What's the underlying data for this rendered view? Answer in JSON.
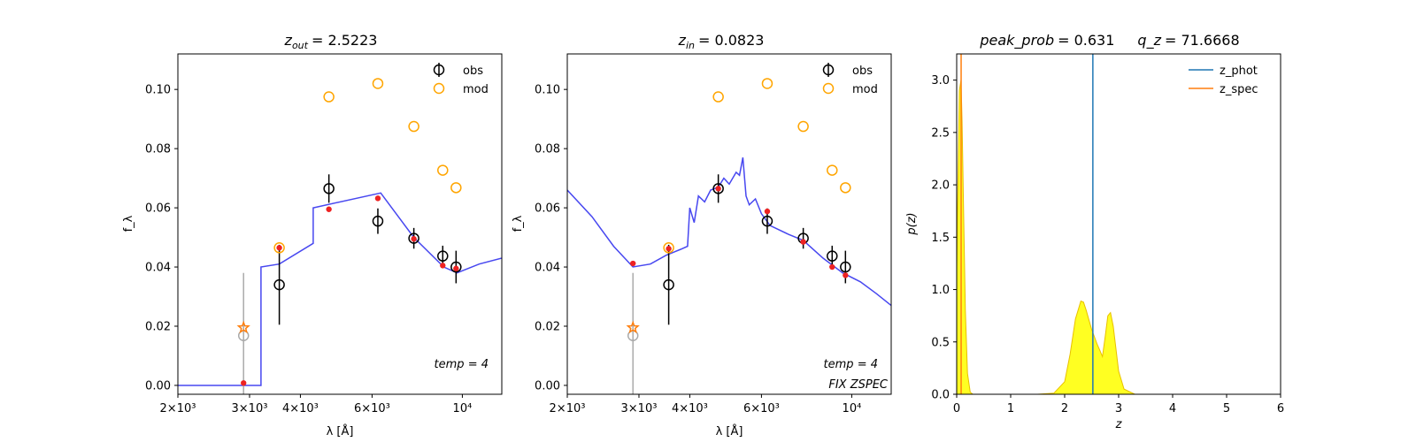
{
  "chart_data": [
    {
      "type": "scatter",
      "title": "z_out = 2.5223",
      "title_parts": {
        "var": "z",
        "sub": "out",
        "value": "= 2.5223"
      },
      "xlabel": "λ [Å]",
      "ylabel": "f_λ",
      "x_scale": "log",
      "xlim": [
        2000,
        12500
      ],
      "ylim": [
        -0.003,
        0.112
      ],
      "x_ticks": [
        {
          "value": 2000,
          "label": "2×10³"
        },
        {
          "value": 3000,
          "label": "3×10³"
        },
        {
          "value": 4000,
          "label": "4×10³"
        },
        {
          "value": 6000,
          "label": "6×10³"
        },
        {
          "value": 10000,
          "label": "10⁴"
        }
      ],
      "y_ticks": [
        0.0,
        0.02,
        0.04,
        0.06,
        0.08,
        0.1
      ],
      "y_tick_labels": [
        "0.00",
        "0.02",
        "0.04",
        "0.06",
        "0.08",
        "0.10"
      ],
      "legend": {
        "placement": "top-right",
        "entries": [
          "obs",
          "mod"
        ]
      },
      "annotation": "temp = 4",
      "annotation2": "",
      "series": [
        {
          "name": "obs",
          "color": "#000000",
          "x": [
            3550,
            4700,
            6200,
            7600,
            8950,
            9650
          ],
          "y": [
            0.034,
            0.0665,
            0.0555,
            0.0497,
            0.0437,
            0.04
          ],
          "err": [
            0.0135,
            0.0048,
            0.0043,
            0.0035,
            0.0035,
            0.0055
          ]
        },
        {
          "name": "obs (upper limit)",
          "color": "#aaaaaa",
          "x": [
            2900
          ],
          "y": [
            0.0168
          ],
          "err": [
            0.0212
          ]
        },
        {
          "name": "mod",
          "color": "#FFA500",
          "x": [
            3550,
            4700,
            6200,
            7600,
            8950,
            9650,
            2900
          ],
          "y": [
            0.0465,
            0.0975,
            0.102,
            0.0875,
            0.0727,
            0.0668,
            0.0195
          ]
        },
        {
          "name": "red points",
          "color": "#ee2222",
          "x": [
            2900,
            3550,
            4700,
            6200,
            7600,
            8950,
            9650
          ],
          "y": [
            0.0008,
            0.0465,
            0.0595,
            0.0632,
            0.0495,
            0.0405,
            0.0395
          ]
        },
        {
          "name": "template",
          "color": "#3333ee",
          "x": [
            2000,
            3200,
            3200,
            3550,
            4300,
            4300,
            6300,
            7600,
            9000,
            9700,
            11000,
            12500
          ],
          "y": [
            0.0,
            0.0,
            0.04,
            0.041,
            0.048,
            0.06,
            0.065,
            0.05,
            0.04,
            0.038,
            0.041,
            0.043
          ]
        }
      ]
    },
    {
      "type": "scatter",
      "title": "z_in = 0.0823",
      "title_parts": {
        "var": "z",
        "sub": "in",
        "value": "= 0.0823"
      },
      "xlabel": "λ [Å]",
      "ylabel": "f_λ",
      "x_scale": "log",
      "xlim": [
        2000,
        12500
      ],
      "ylim": [
        -0.003,
        0.112
      ],
      "x_ticks": [
        {
          "value": 2000,
          "label": "2×10³"
        },
        {
          "value": 3000,
          "label": "3×10³"
        },
        {
          "value": 4000,
          "label": "4×10³"
        },
        {
          "value": 6000,
          "label": "6×10³"
        },
        {
          "value": 10000,
          "label": "10⁴"
        }
      ],
      "y_ticks": [
        0.0,
        0.02,
        0.04,
        0.06,
        0.08,
        0.1
      ],
      "y_tick_labels": [
        "0.00",
        "0.02",
        "0.04",
        "0.06",
        "0.08",
        "0.10"
      ],
      "legend": {
        "placement": "top-right",
        "entries": [
          "obs",
          "mod"
        ]
      },
      "annotation": "temp = 4",
      "annotation2": "FIX ZSPEC",
      "series": [
        {
          "name": "obs",
          "color": "#000000",
          "x": [
            3550,
            4700,
            6200,
            7600,
            8950,
            9650
          ],
          "y": [
            0.034,
            0.0665,
            0.0555,
            0.0497,
            0.0437,
            0.04
          ],
          "err": [
            0.0135,
            0.0048,
            0.0043,
            0.0035,
            0.0035,
            0.0055
          ]
        },
        {
          "name": "obs (upper limit)",
          "color": "#aaaaaa",
          "x": [
            2900
          ],
          "y": [
            0.0168
          ],
          "err": [
            0.0212
          ]
        },
        {
          "name": "mod",
          "color": "#FFA500",
          "x": [
            3550,
            4700,
            6200,
            7600,
            8950,
            9650,
            2900
          ],
          "y": [
            0.0465,
            0.0975,
            0.102,
            0.0875,
            0.0727,
            0.0668,
            0.0195
          ]
        },
        {
          "name": "red points",
          "color": "#ee2222",
          "x": [
            2900,
            3550,
            4700,
            6200,
            7600,
            8950,
            9650
          ],
          "y": [
            0.0412,
            0.0462,
            0.0665,
            0.0588,
            0.0485,
            0.04,
            0.0372
          ]
        },
        {
          "name": "template",
          "color": "#3333ee",
          "x": [
            2000,
            2300,
            2600,
            2900,
            3200,
            3500,
            3800,
            3950,
            4000,
            4100,
            4200,
            4350,
            4500,
            4700,
            4850,
            5000,
            5200,
            5300,
            5400,
            5500,
            5600,
            5800,
            6000,
            6300,
            7000,
            7600,
            8500,
            9500,
            10500,
            11500,
            12500
          ],
          "y": [
            0.066,
            0.057,
            0.047,
            0.04,
            0.041,
            0.044,
            0.046,
            0.047,
            0.06,
            0.055,
            0.064,
            0.062,
            0.066,
            0.067,
            0.07,
            0.068,
            0.072,
            0.071,
            0.077,
            0.064,
            0.061,
            0.063,
            0.058,
            0.054,
            0.051,
            0.049,
            0.043,
            0.038,
            0.035,
            0.031,
            0.027
          ]
        }
      ]
    },
    {
      "type": "area",
      "title": "peak_prob = 0.631      q_z = 71.6668",
      "title_parts": {
        "a_name": "peak_prob",
        "a_value": "= 0.631",
        "b_name": "q_z",
        "b_value": "= 71.6668"
      },
      "xlabel": "z",
      "ylabel": "p(z)",
      "xlim": [
        0,
        6
      ],
      "ylim": [
        0,
        3.25
      ],
      "x_ticks": [
        0,
        1,
        2,
        3,
        4,
        5,
        6
      ],
      "y_ticks": [
        0.0,
        0.5,
        1.0,
        1.5,
        2.0,
        2.5,
        3.0
      ],
      "y_tick_labels": [
        "0.0",
        "0.5",
        "1.0",
        "1.5",
        "2.0",
        "2.5",
        "3.0"
      ],
      "legend": {
        "placement": "top-right",
        "entries": [
          "z_phot",
          "z_spec"
        ]
      },
      "z_phot": 2.5223,
      "z_spec": 0.0823,
      "colors": {
        "z_phot": "#1f77b4",
        "z_spec": "#ff7f0e",
        "fill": "#ffff22",
        "edge": "#e8c000"
      },
      "pz": {
        "x": [
          0,
          0.02,
          0.05,
          0.08,
          0.1,
          0.13,
          0.16,
          0.2,
          0.25,
          0.3,
          1.5,
          1.8,
          2.0,
          2.1,
          2.2,
          2.3,
          2.35,
          2.4,
          2.5,
          2.6,
          2.65,
          2.7,
          2.75,
          2.8,
          2.85,
          2.9,
          3.0,
          3.1,
          3.3,
          5.0
        ],
        "y": [
          1.2,
          1.9,
          2.9,
          3.0,
          2.6,
          1.7,
          0.8,
          0.2,
          0.02,
          0.0,
          0.0,
          0.01,
          0.12,
          0.38,
          0.72,
          0.89,
          0.88,
          0.8,
          0.62,
          0.48,
          0.42,
          0.36,
          0.55,
          0.75,
          0.78,
          0.65,
          0.22,
          0.05,
          0.0,
          0.0
        ]
      }
    }
  ]
}
